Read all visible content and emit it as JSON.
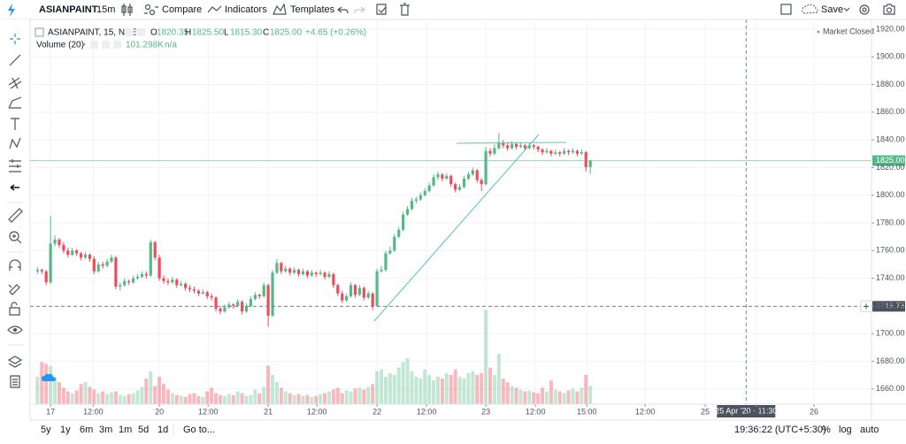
{
  "toolbar": {
    "symbol": "ASIANPAINT",
    "interval": "15m",
    "compare": "Compare",
    "indicators": "Indicators",
    "templates": "Templates",
    "save": "Save"
  },
  "legend": {
    "title": "ASIANPAINT, 15, NSE",
    "o_key": "O",
    "o": "1820.35",
    "h_key": "H",
    "h": "1825.50",
    "l_key": "L",
    "l": "1815.30",
    "c_key": "C",
    "c": "1825.00",
    "change": "+4.65 (+0.26%)",
    "volume_title": "Volume (20)",
    "volume": "101.298K",
    "volume_ma": "n/a",
    "status": "Market Closed"
  },
  "bottom_bar": {
    "ranges": [
      "5y",
      "1y",
      "6m",
      "3m",
      "1m",
      "5d",
      "1d"
    ],
    "goto": "Go to...",
    "clock": "19:36:22 (UTC+5:30)",
    "percent": "%",
    "log": "log",
    "auto": "auto"
  },
  "chart_data": {
    "type": "candlestick",
    "series": [
      {
        "name": "ASIANPAINT, 15, NSE",
        "up_color": "#53b987",
        "down_color": "#eb4d5c",
        "ohlc": [
          [
            1745,
            1748,
            1743,
            1746
          ],
          [
            1746,
            1747,
            1743,
            1745
          ],
          [
            1745,
            1746,
            1735,
            1737
          ],
          [
            1737,
            1785,
            1736,
            1765
          ],
          [
            1765,
            1771,
            1763,
            1768
          ],
          [
            1768,
            1769,
            1762,
            1764
          ],
          [
            1764,
            1766,
            1758,
            1760
          ],
          [
            1760,
            1762,
            1755,
            1757
          ],
          [
            1757,
            1762,
            1756,
            1760
          ],
          [
            1760,
            1761,
            1756,
            1758
          ],
          [
            1758,
            1759,
            1753,
            1755
          ],
          [
            1755,
            1759,
            1754,
            1757
          ],
          [
            1757,
            1758,
            1752,
            1754
          ],
          [
            1754,
            1756,
            1743,
            1745
          ],
          [
            1745,
            1752,
            1744,
            1750
          ],
          [
            1750,
            1752,
            1747,
            1749
          ],
          [
            1749,
            1754,
            1748,
            1752
          ],
          [
            1752,
            1757,
            1751,
            1755
          ],
          [
            1755,
            1756,
            1732,
            1734
          ],
          [
            1734,
            1737,
            1731,
            1735
          ],
          [
            1735,
            1740,
            1734,
            1738
          ],
          [
            1738,
            1739,
            1735,
            1737
          ],
          [
            1737,
            1742,
            1736,
            1740
          ],
          [
            1740,
            1743,
            1739,
            1741
          ],
          [
            1741,
            1745,
            1740,
            1743
          ],
          [
            1743,
            1745,
            1740,
            1742
          ],
          [
            1742,
            1768,
            1741,
            1766
          ],
          [
            1766,
            1767,
            1753,
            1755
          ],
          [
            1755,
            1757,
            1738,
            1740
          ],
          [
            1740,
            1742,
            1736,
            1738
          ],
          [
            1738,
            1740,
            1735,
            1737
          ],
          [
            1737,
            1741,
            1736,
            1739
          ],
          [
            1739,
            1740,
            1733,
            1735
          ],
          [
            1735,
            1738,
            1734,
            1736
          ],
          [
            1736,
            1737,
            1731,
            1733
          ],
          [
            1733,
            1735,
            1730,
            1732
          ],
          [
            1732,
            1734,
            1729,
            1731
          ],
          [
            1731,
            1732,
            1727,
            1729
          ],
          [
            1729,
            1732,
            1728,
            1730
          ],
          [
            1730,
            1731,
            1725,
            1727
          ],
          [
            1727,
            1729,
            1724,
            1726
          ],
          [
            1726,
            1727,
            1716,
            1718
          ],
          [
            1718,
            1720,
            1714,
            1716
          ],
          [
            1716,
            1721,
            1715,
            1719
          ],
          [
            1719,
            1723,
            1718,
            1721
          ],
          [
            1721,
            1722,
            1718,
            1720
          ],
          [
            1720,
            1725,
            1719,
            1723
          ],
          [
            1723,
            1724,
            1714,
            1716
          ],
          [
            1716,
            1722,
            1715,
            1720
          ],
          [
            1720,
            1727,
            1719,
            1725
          ],
          [
            1725,
            1730,
            1724,
            1728
          ],
          [
            1728,
            1729,
            1725,
            1727
          ],
          [
            1727,
            1737,
            1726,
            1735
          ],
          [
            1735,
            1736,
            1705,
            1713
          ],
          [
            1713,
            1746,
            1712,
            1744
          ],
          [
            1744,
            1754,
            1743,
            1751
          ],
          [
            1751,
            1752,
            1743,
            1745
          ],
          [
            1745,
            1749,
            1744,
            1747
          ],
          [
            1747,
            1748,
            1742,
            1744
          ],
          [
            1744,
            1748,
            1743,
            1746
          ],
          [
            1746,
            1747,
            1741,
            1743
          ],
          [
            1743,
            1747,
            1742,
            1745
          ],
          [
            1745,
            1746,
            1740,
            1742
          ],
          [
            1742,
            1746,
            1741,
            1744
          ],
          [
            1744,
            1745,
            1741,
            1743
          ],
          [
            1743,
            1746,
            1742,
            1744
          ],
          [
            1744,
            1745,
            1739,
            1741
          ],
          [
            1741,
            1745,
            1740,
            1743
          ],
          [
            1743,
            1744,
            1733,
            1735
          ],
          [
            1735,
            1736,
            1727,
            1729
          ],
          [
            1729,
            1731,
            1722,
            1724
          ],
          [
            1724,
            1729,
            1723,
            1727
          ],
          [
            1727,
            1737,
            1726,
            1735
          ],
          [
            1735,
            1736,
            1726,
            1728
          ],
          [
            1728,
            1735,
            1727,
            1733
          ],
          [
            1733,
            1734,
            1724,
            1726
          ],
          [
            1726,
            1731,
            1725,
            1729
          ],
          [
            1729,
            1730,
            1717,
            1720
          ],
          [
            1720,
            1747,
            1719,
            1745
          ],
          [
            1745,
            1749,
            1744,
            1746
          ],
          [
            1746,
            1760,
            1745,
            1758
          ],
          [
            1758,
            1763,
            1757,
            1760
          ],
          [
            1760,
            1772,
            1759,
            1770
          ],
          [
            1770,
            1777,
            1769,
            1775
          ],
          [
            1775,
            1788,
            1774,
            1786
          ],
          [
            1786,
            1792,
            1785,
            1790
          ],
          [
            1790,
            1798,
            1789,
            1796
          ],
          [
            1796,
            1799,
            1794,
            1797
          ],
          [
            1797,
            1802,
            1796,
            1800
          ],
          [
            1800,
            1805,
            1799,
            1803
          ],
          [
            1803,
            1809,
            1802,
            1807
          ],
          [
            1807,
            1815,
            1806,
            1813
          ],
          [
            1813,
            1817,
            1811,
            1815
          ],
          [
            1815,
            1816,
            1810,
            1812
          ],
          [
            1812,
            1816,
            1811,
            1814
          ],
          [
            1814,
            1815,
            1806,
            1808
          ],
          [
            1808,
            1809,
            1802,
            1804
          ],
          [
            1804,
            1808,
            1803,
            1806
          ],
          [
            1806,
            1814,
            1805,
            1812
          ],
          [
            1812,
            1817,
            1811,
            1815
          ],
          [
            1815,
            1820,
            1814,
            1818
          ],
          [
            1818,
            1819,
            1809,
            1811
          ],
          [
            1811,
            1812,
            1803,
            1808
          ],
          [
            1808,
            1835,
            1807,
            1832
          ],
          [
            1832,
            1834,
            1828,
            1830
          ],
          [
            1830,
            1837,
            1829,
            1834
          ],
          [
            1834,
            1845,
            1833,
            1838
          ],
          [
            1838,
            1840,
            1834,
            1836
          ],
          [
            1836,
            1838,
            1832,
            1834
          ],
          [
            1834,
            1839,
            1833,
            1837
          ],
          [
            1837,
            1838,
            1833,
            1835
          ],
          [
            1835,
            1838,
            1834,
            1836
          ],
          [
            1836,
            1837,
            1832,
            1834
          ],
          [
            1834,
            1838,
            1833,
            1836
          ],
          [
            1836,
            1837,
            1833,
            1835
          ],
          [
            1835,
            1836,
            1831,
            1833
          ],
          [
            1833,
            1834,
            1829,
            1831
          ],
          [
            1831,
            1834,
            1830,
            1832
          ],
          [
            1832,
            1833,
            1828,
            1830
          ],
          [
            1830,
            1833,
            1829,
            1831
          ],
          [
            1831,
            1832,
            1828,
            1830
          ],
          [
            1830,
            1834,
            1829,
            1832
          ],
          [
            1832,
            1833,
            1829,
            1831
          ],
          [
            1831,
            1834,
            1830,
            1832
          ],
          [
            1832,
            1833,
            1828,
            1830
          ],
          [
            1830,
            1833,
            1829,
            1831
          ],
          [
            1831,
            1832,
            1817,
            1820.35
          ],
          [
            1820.35,
            1825.5,
            1815.3,
            1825
          ]
        ]
      }
    ],
    "volume": {
      "name": "Volume (20)",
      "up_color": "rgba(83,185,135,0.35)",
      "down_color": "rgba(235,77,92,0.4)",
      "ylim": [
        0,
        2100
      ],
      "values": [
        150,
        230,
        220,
        210,
        140,
        120,
        90,
        70,
        60,
        75,
        110,
        120,
        95,
        80,
        60,
        70,
        55,
        65,
        70,
        50,
        45,
        55,
        60,
        75,
        95,
        140,
        180,
        100,
        150,
        110,
        80,
        60,
        50,
        45,
        40,
        55,
        60,
        45,
        40,
        70,
        90,
        60,
        50,
        45,
        55,
        50,
        70,
        60,
        45,
        50,
        80,
        60,
        95,
        210,
        160,
        120,
        90,
        70,
        60,
        50,
        55,
        45,
        50,
        40,
        45,
        55,
        60,
        70,
        80,
        90,
        60,
        75,
        70,
        85,
        90,
        80,
        95,
        110,
        180,
        190,
        150,
        170,
        160,
        200,
        230,
        250,
        180,
        150,
        140,
        190,
        160,
        130,
        150,
        140,
        170,
        160,
        190,
        150,
        140,
        170,
        180,
        160,
        170,
        515,
        200,
        160,
        275,
        140,
        120,
        100,
        90,
        80,
        70,
        75,
        65,
        60,
        90,
        70,
        130,
        80,
        70,
        60,
        75,
        85,
        70,
        90,
        160,
        101.298
      ]
    },
    "xlim": [
      -1.7,
      191.6
    ],
    "xticks": [
      {
        "value": 3,
        "label": "17"
      },
      {
        "value": 12.8,
        "label": "12:00"
      },
      {
        "value": 28,
        "label": "20"
      },
      {
        "value": 39.2,
        "label": "12:00"
      },
      {
        "value": 53,
        "label": "21"
      },
      {
        "value": 64.2,
        "label": "12:00"
      },
      {
        "value": 78,
        "label": "22"
      },
      {
        "value": 89.4,
        "label": "12:00"
      },
      {
        "value": 103,
        "label": "23"
      },
      {
        "value": 114.4,
        "label": "12:00"
      },
      {
        "value": 126.2,
        "label": "15:00"
      },
      {
        "value": 139.6,
        "label": "12:00"
      },
      {
        "value": 153.4,
        "label": "25"
      },
      {
        "value": 165.2,
        "label": "12:00"
      },
      {
        "value": 178.4,
        "label": "26"
      }
    ],
    "ylim": [
      1649,
      1927
    ],
    "yticks": [
      {
        "value": 1660,
        "label": "1660.00"
      },
      {
        "value": 1680,
        "label": "1680.00"
      },
      {
        "value": 1700,
        "label": "1700.00"
      },
      {
        "value": 1720,
        "label": "1720.00"
      },
      {
        "value": 1740,
        "label": "1740.00"
      },
      {
        "value": 1760,
        "label": "1760.00"
      },
      {
        "value": 1780,
        "label": "1780.00"
      },
      {
        "value": 1800,
        "label": "1800.00"
      },
      {
        "value": 1820,
        "label": "1820.00"
      },
      {
        "value": 1840,
        "label": "1840.00"
      },
      {
        "value": 1860,
        "label": "1860.00"
      },
      {
        "value": 1880,
        "label": "1880.00"
      },
      {
        "value": 1900,
        "label": "1900.00"
      },
      {
        "value": 1920,
        "label": "1920.00"
      }
    ],
    "grid": true,
    "last_price": {
      "value": 1825,
      "label": "1825.00",
      "color": "#53b987"
    },
    "crosshair_y": 1719.73,
    "crosshair_x": {
      "value": 162.8,
      "label": "25 Apr '20 - 11:30"
    }
  }
}
